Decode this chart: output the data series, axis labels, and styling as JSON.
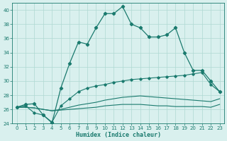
{
  "xlabel": "Humidex (Indice chaleur)",
  "x": [
    0,
    1,
    2,
    3,
    4,
    5,
    6,
    7,
    8,
    9,
    10,
    11,
    12,
    13,
    14,
    15,
    16,
    17,
    18,
    19,
    20,
    21,
    22,
    23
  ],
  "line1": [
    26.3,
    26.7,
    26.8,
    25.2,
    24.1,
    29.0,
    32.5,
    35.5,
    35.2,
    37.5,
    39.5,
    39.5,
    40.5,
    38.0,
    37.5,
    36.2,
    36.2,
    36.5,
    37.5,
    34.0,
    31.5,
    31.5,
    30.0,
    28.5
  ],
  "line2": [
    26.3,
    26.5,
    25.5,
    25.2,
    24.2,
    26.5,
    27.5,
    28.5,
    29.0,
    29.3,
    29.5,
    29.8,
    30.0,
    30.2,
    30.3,
    30.4,
    30.5,
    30.6,
    30.7,
    30.8,
    31.0,
    31.2,
    29.5,
    28.5
  ],
  "line3": [
    26.3,
    26.3,
    26.2,
    26.0,
    25.8,
    26.0,
    26.3,
    26.6,
    26.8,
    27.0,
    27.3,
    27.5,
    27.7,
    27.8,
    27.9,
    27.8,
    27.7,
    27.6,
    27.5,
    27.4,
    27.3,
    27.2,
    27.1,
    27.5
  ],
  "line4": [
    26.3,
    26.3,
    26.2,
    26.0,
    25.8,
    25.9,
    26.0,
    26.1,
    26.2,
    26.3,
    26.5,
    26.6,
    26.7,
    26.7,
    26.7,
    26.6,
    26.5,
    26.5,
    26.4,
    26.4,
    26.4,
    26.4,
    26.3,
    26.7
  ],
  "line_color": "#1a7a6e",
  "bg_color": "#d9f0ee",
  "grid_color": "#afd8d2",
  "ylim": [
    24,
    41
  ],
  "yticks": [
    24,
    26,
    28,
    30,
    32,
    34,
    36,
    38,
    40
  ],
  "xticks": [
    0,
    1,
    2,
    3,
    4,
    5,
    6,
    7,
    8,
    9,
    10,
    11,
    12,
    13,
    14,
    15,
    16,
    17,
    18,
    19,
    20,
    21,
    22,
    23
  ]
}
